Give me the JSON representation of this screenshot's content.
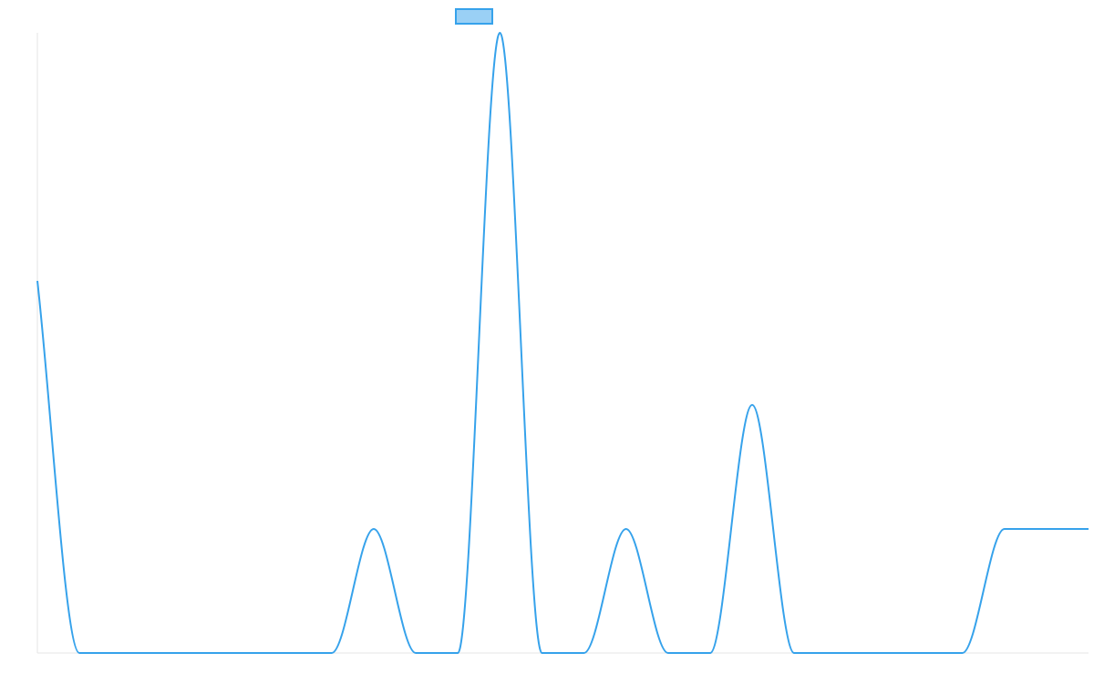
{
  "chart_data": {
    "type": "line",
    "title": "",
    "xlabel": "",
    "ylabel": "",
    "legend": {
      "position": "top-center",
      "entries": [
        {
          "label": "",
          "color": "#36a2eb",
          "fill": "#9ad0f5"
        }
      ]
    },
    "grid": false,
    "xlim": [
      0,
      25
    ],
    "ylim": [
      0,
      5
    ],
    "x": [
      0,
      1,
      2,
      3,
      4,
      5,
      6,
      7,
      8,
      9,
      10,
      11,
      12,
      13,
      14,
      15,
      16,
      17,
      18,
      19,
      20,
      21,
      22,
      23,
      24,
      25
    ],
    "series": [
      {
        "name": "",
        "color": "#36a2eb",
        "values": [
          3,
          0,
          0,
          0,
          0,
          0,
          0,
          0,
          1,
          0,
          0,
          5,
          0,
          0,
          1,
          0,
          0,
          2,
          0,
          0,
          0,
          0,
          0,
          1,
          1,
          1
        ]
      }
    ]
  }
}
